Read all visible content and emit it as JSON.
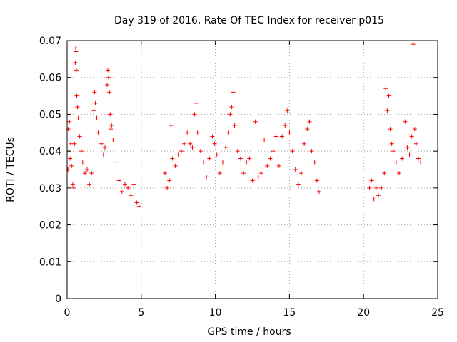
{
  "chart_data": {
    "type": "scatter",
    "title": "Day 319 of 2016, Rate Of TEC Index for receiver p015",
    "xlabel": "GPS time / hours",
    "ylabel": "ROTI / TECUs",
    "xlim": [
      0,
      25
    ],
    "ylim": [
      0,
      0.07
    ],
    "x_ticks": [
      {
        "value": 0,
        "label": "0"
      },
      {
        "value": 5,
        "label": "5"
      },
      {
        "value": 10,
        "label": "10"
      },
      {
        "value": 15,
        "label": "15"
      },
      {
        "value": 20,
        "label": "20"
      },
      {
        "value": 25,
        "label": "25"
      }
    ],
    "y_ticks": [
      {
        "value": 0,
        "label": "0"
      },
      {
        "value": 0.01,
        "label": "0.01"
      },
      {
        "value": 0.02,
        "label": "0.02"
      },
      {
        "value": 0.03,
        "label": "0.03"
      },
      {
        "value": 0.04,
        "label": "0.04"
      },
      {
        "value": 0.05,
        "label": "0.05"
      },
      {
        "value": 0.06,
        "label": "0.06"
      },
      {
        "value": 0.07,
        "label": "0.07"
      }
    ],
    "grid": true,
    "marker": "plus",
    "series_color": "#ff0000",
    "data_gaps_hours": [
      [
        4.9,
        6.4
      ],
      [
        17.1,
        20.3
      ]
    ],
    "series": [
      {
        "points": [
          [
            0.05,
            0.035
          ],
          [
            0.08,
            0.046
          ],
          [
            0.12,
            0.04
          ],
          [
            0.15,
            0.048
          ],
          [
            0.2,
            0.038
          ],
          [
            0.25,
            0.042
          ],
          [
            0.3,
            0.036
          ],
          [
            0.38,
            0.031
          ],
          [
            0.45,
            0.03
          ],
          [
            0.5,
            0.042
          ],
          [
            0.55,
            0.064
          ],
          [
            0.58,
            0.068
          ],
          [
            0.6,
            0.067
          ],
          [
            0.62,
            0.062
          ],
          [
            0.65,
            0.055
          ],
          [
            0.7,
            0.052
          ],
          [
            0.75,
            0.049
          ],
          [
            0.85,
            0.044
          ],
          [
            0.95,
            0.04
          ],
          [
            1.05,
            0.037
          ],
          [
            1.2,
            0.034
          ],
          [
            1.35,
            0.035
          ],
          [
            1.5,
            0.031
          ],
          [
            1.65,
            0.034
          ],
          [
            1.8,
            0.051
          ],
          [
            1.85,
            0.056
          ],
          [
            1.9,
            0.053
          ],
          [
            2.0,
            0.049
          ],
          [
            2.1,
            0.045
          ],
          [
            2.3,
            0.042
          ],
          [
            2.45,
            0.039
          ],
          [
            2.55,
            0.041
          ],
          [
            2.7,
            0.058
          ],
          [
            2.75,
            0.062
          ],
          [
            2.8,
            0.06
          ],
          [
            2.85,
            0.056
          ],
          [
            2.9,
            0.05
          ],
          [
            2.95,
            0.046
          ],
          [
            3.0,
            0.047
          ],
          [
            3.1,
            0.043
          ],
          [
            3.3,
            0.037
          ],
          [
            3.5,
            0.032
          ],
          [
            3.7,
            0.029
          ],
          [
            3.9,
            0.031
          ],
          [
            4.1,
            0.03
          ],
          [
            4.3,
            0.028
          ],
          [
            4.5,
            0.031
          ],
          [
            4.7,
            0.026
          ],
          [
            4.85,
            0.025
          ],
          [
            6.6,
            0.034
          ],
          [
            6.75,
            0.03
          ],
          [
            6.9,
            0.032
          ],
          [
            7.0,
            0.047
          ],
          [
            7.1,
            0.038
          ],
          [
            7.3,
            0.036
          ],
          [
            7.5,
            0.039
          ],
          [
            7.7,
            0.04
          ],
          [
            7.9,
            0.042
          ],
          [
            8.1,
            0.045
          ],
          [
            8.3,
            0.042
          ],
          [
            8.45,
            0.041
          ],
          [
            8.6,
            0.05
          ],
          [
            8.7,
            0.053
          ],
          [
            8.8,
            0.045
          ],
          [
            9.0,
            0.04
          ],
          [
            9.2,
            0.037
          ],
          [
            9.4,
            0.033
          ],
          [
            9.6,
            0.038
          ],
          [
            9.8,
            0.044
          ],
          [
            9.95,
            0.042
          ],
          [
            10.1,
            0.039
          ],
          [
            10.3,
            0.034
          ],
          [
            10.5,
            0.037
          ],
          [
            10.7,
            0.041
          ],
          [
            10.9,
            0.045
          ],
          [
            11.0,
            0.05
          ],
          [
            11.1,
            0.052
          ],
          [
            11.2,
            0.056
          ],
          [
            11.3,
            0.047
          ],
          [
            11.5,
            0.04
          ],
          [
            11.7,
            0.038
          ],
          [
            11.9,
            0.034
          ],
          [
            12.1,
            0.037
          ],
          [
            12.3,
            0.038
          ],
          [
            12.5,
            0.032
          ],
          [
            12.7,
            0.048
          ],
          [
            12.9,
            0.033
          ],
          [
            13.1,
            0.034
          ],
          [
            13.3,
            0.043
          ],
          [
            13.5,
            0.036
          ],
          [
            13.7,
            0.038
          ],
          [
            13.9,
            0.04
          ],
          [
            14.1,
            0.044
          ],
          [
            14.3,
            0.036
          ],
          [
            14.5,
            0.044
          ],
          [
            14.7,
            0.047
          ],
          [
            14.85,
            0.051
          ],
          [
            15.0,
            0.045
          ],
          [
            15.2,
            0.04
          ],
          [
            15.4,
            0.035
          ],
          [
            15.6,
            0.031
          ],
          [
            15.8,
            0.034
          ],
          [
            16.0,
            0.042
          ],
          [
            16.2,
            0.046
          ],
          [
            16.35,
            0.048
          ],
          [
            16.5,
            0.04
          ],
          [
            16.7,
            0.037
          ],
          [
            16.85,
            0.032
          ],
          [
            17.0,
            0.029
          ],
          [
            20.4,
            0.03
          ],
          [
            20.55,
            0.032
          ],
          [
            20.7,
            0.027
          ],
          [
            20.85,
            0.03
          ],
          [
            21.0,
            0.028
          ],
          [
            21.2,
            0.03
          ],
          [
            21.4,
            0.034
          ],
          [
            21.5,
            0.057
          ],
          [
            21.6,
            0.051
          ],
          [
            21.7,
            0.055
          ],
          [
            21.8,
            0.046
          ],
          [
            21.9,
            0.042
          ],
          [
            22.0,
            0.04
          ],
          [
            22.2,
            0.037
          ],
          [
            22.4,
            0.034
          ],
          [
            22.6,
            0.038
          ],
          [
            22.8,
            0.048
          ],
          [
            22.95,
            0.041
          ],
          [
            23.1,
            0.039
          ],
          [
            23.25,
            0.044
          ],
          [
            23.35,
            0.069
          ],
          [
            23.45,
            0.046
          ],
          [
            23.55,
            0.042
          ],
          [
            23.7,
            0.038
          ],
          [
            23.85,
            0.037
          ]
        ]
      }
    ]
  }
}
